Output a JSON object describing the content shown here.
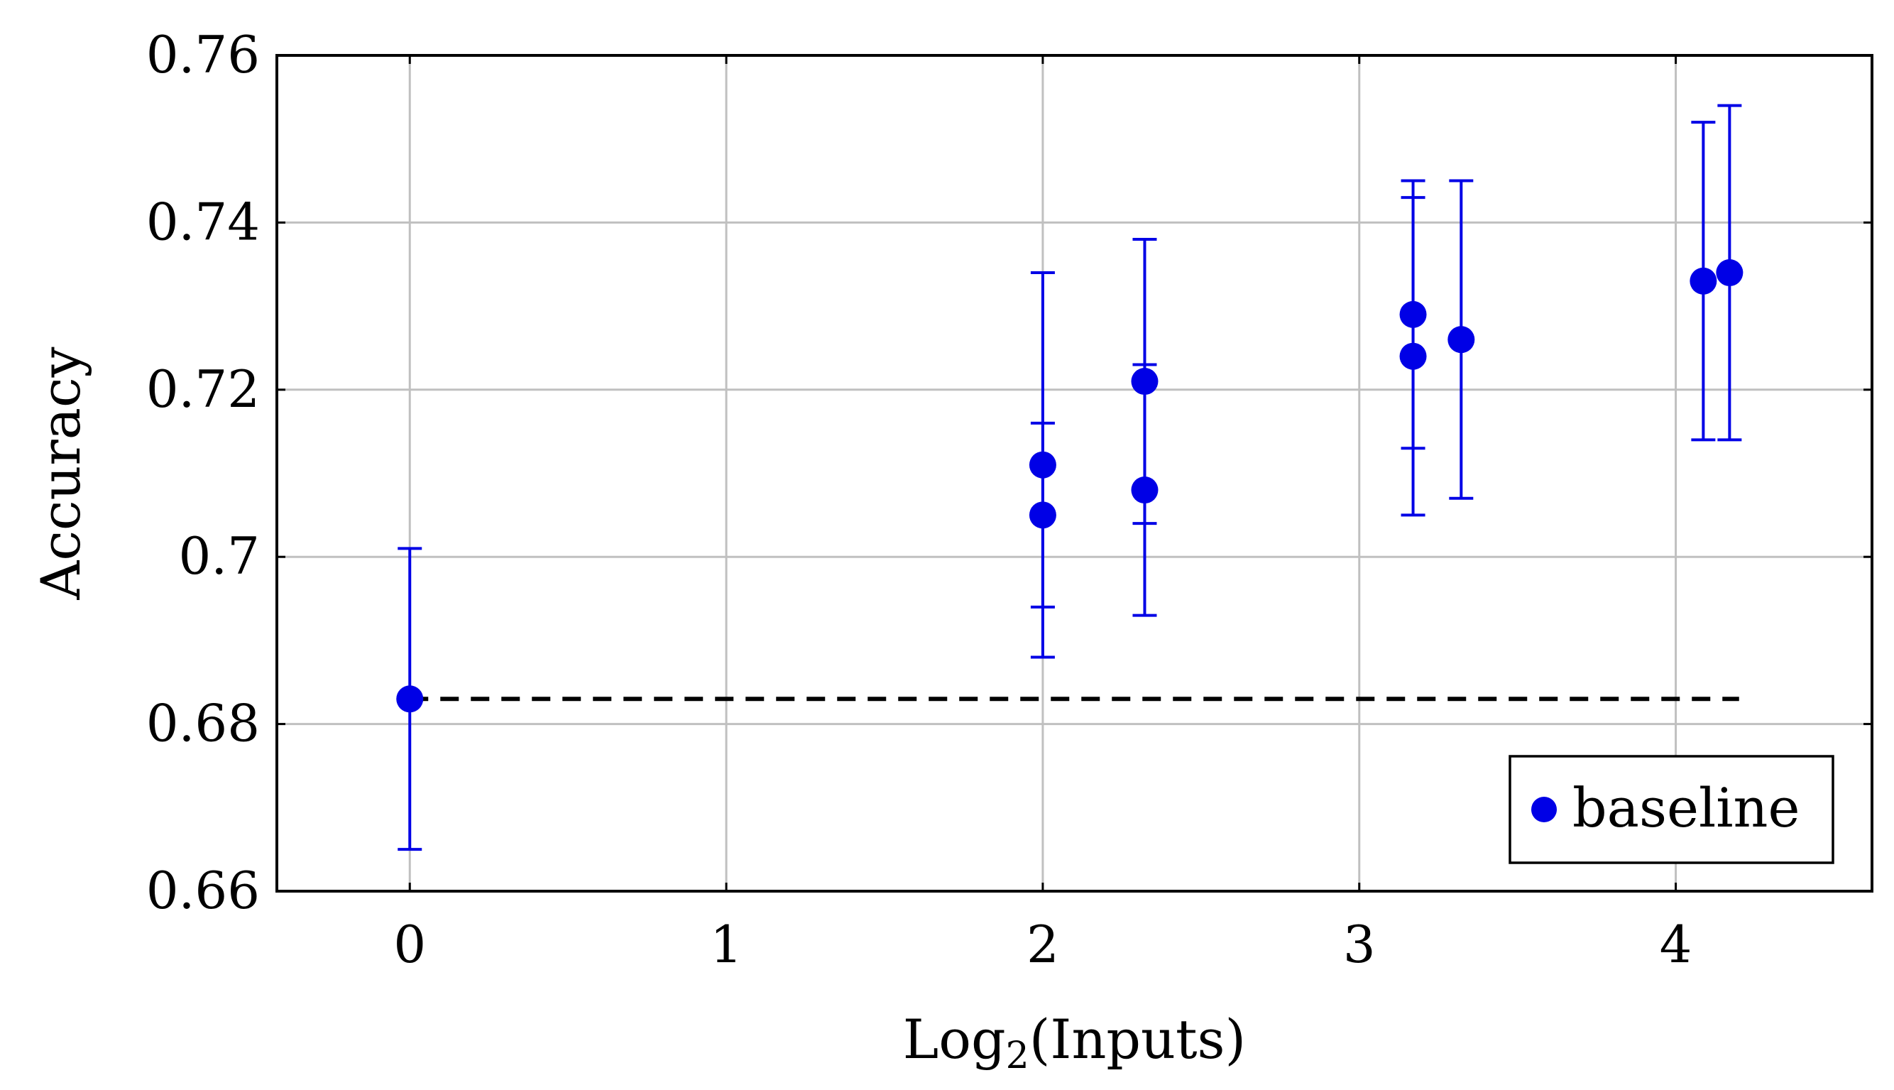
{
  "chart_data": {
    "type": "scatter",
    "xlabel_base": "Log",
    "xlabel_sub": "2",
    "xlabel_rest": "(Inputs)",
    "ylabel": "Accuracy",
    "xlim": [
      -0.42,
      4.62
    ],
    "ylim": [
      0.66,
      0.76
    ],
    "x_ticks": [
      0,
      1,
      2,
      3,
      4
    ],
    "x_tick_labels": [
      "0",
      "1",
      "2",
      "3",
      "4"
    ],
    "y_ticks": [
      0.66,
      0.68,
      0.7,
      0.72,
      0.74,
      0.76
    ],
    "y_tick_labels": [
      "0.66",
      "0.68",
      "0.7",
      "0.72",
      "0.74",
      "0.76"
    ],
    "grid": true,
    "legend": {
      "position": "bottom-right",
      "entries": [
        "baseline"
      ]
    },
    "series": [
      {
        "name": "baseline",
        "color": "#0000e6",
        "points": [
          {
            "x": 0,
            "y": 0.683,
            "err_low": 0.665,
            "err_high": 0.701
          },
          {
            "x": 2,
            "y": 0.711,
            "err_low": 0.694,
            "err_high": 0.734
          },
          {
            "x": 2,
            "y": 0.705,
            "err_low": 0.688,
            "err_high": 0.716
          },
          {
            "x": 2.322,
            "y": 0.721,
            "err_low": 0.704,
            "err_high": 0.738
          },
          {
            "x": 2.322,
            "y": 0.708,
            "err_low": 0.693,
            "err_high": 0.723
          },
          {
            "x": 3.17,
            "y": 0.729,
            "err_low": 0.713,
            "err_high": 0.745
          },
          {
            "x": 3.17,
            "y": 0.724,
            "err_low": 0.705,
            "err_high": 0.743
          },
          {
            "x": 3.322,
            "y": 0.726,
            "err_low": 0.707,
            "err_high": 0.745
          },
          {
            "x": 4.087,
            "y": 0.733,
            "err_low": 0.714,
            "err_high": 0.752
          },
          {
            "x": 4.17,
            "y": 0.734,
            "err_low": 0.714,
            "err_high": 0.754
          }
        ]
      }
    ],
    "reference_line": {
      "y": 0.683,
      "x_start": 0,
      "x_end": 4.2,
      "style": "dashed",
      "color": "#000000"
    }
  }
}
